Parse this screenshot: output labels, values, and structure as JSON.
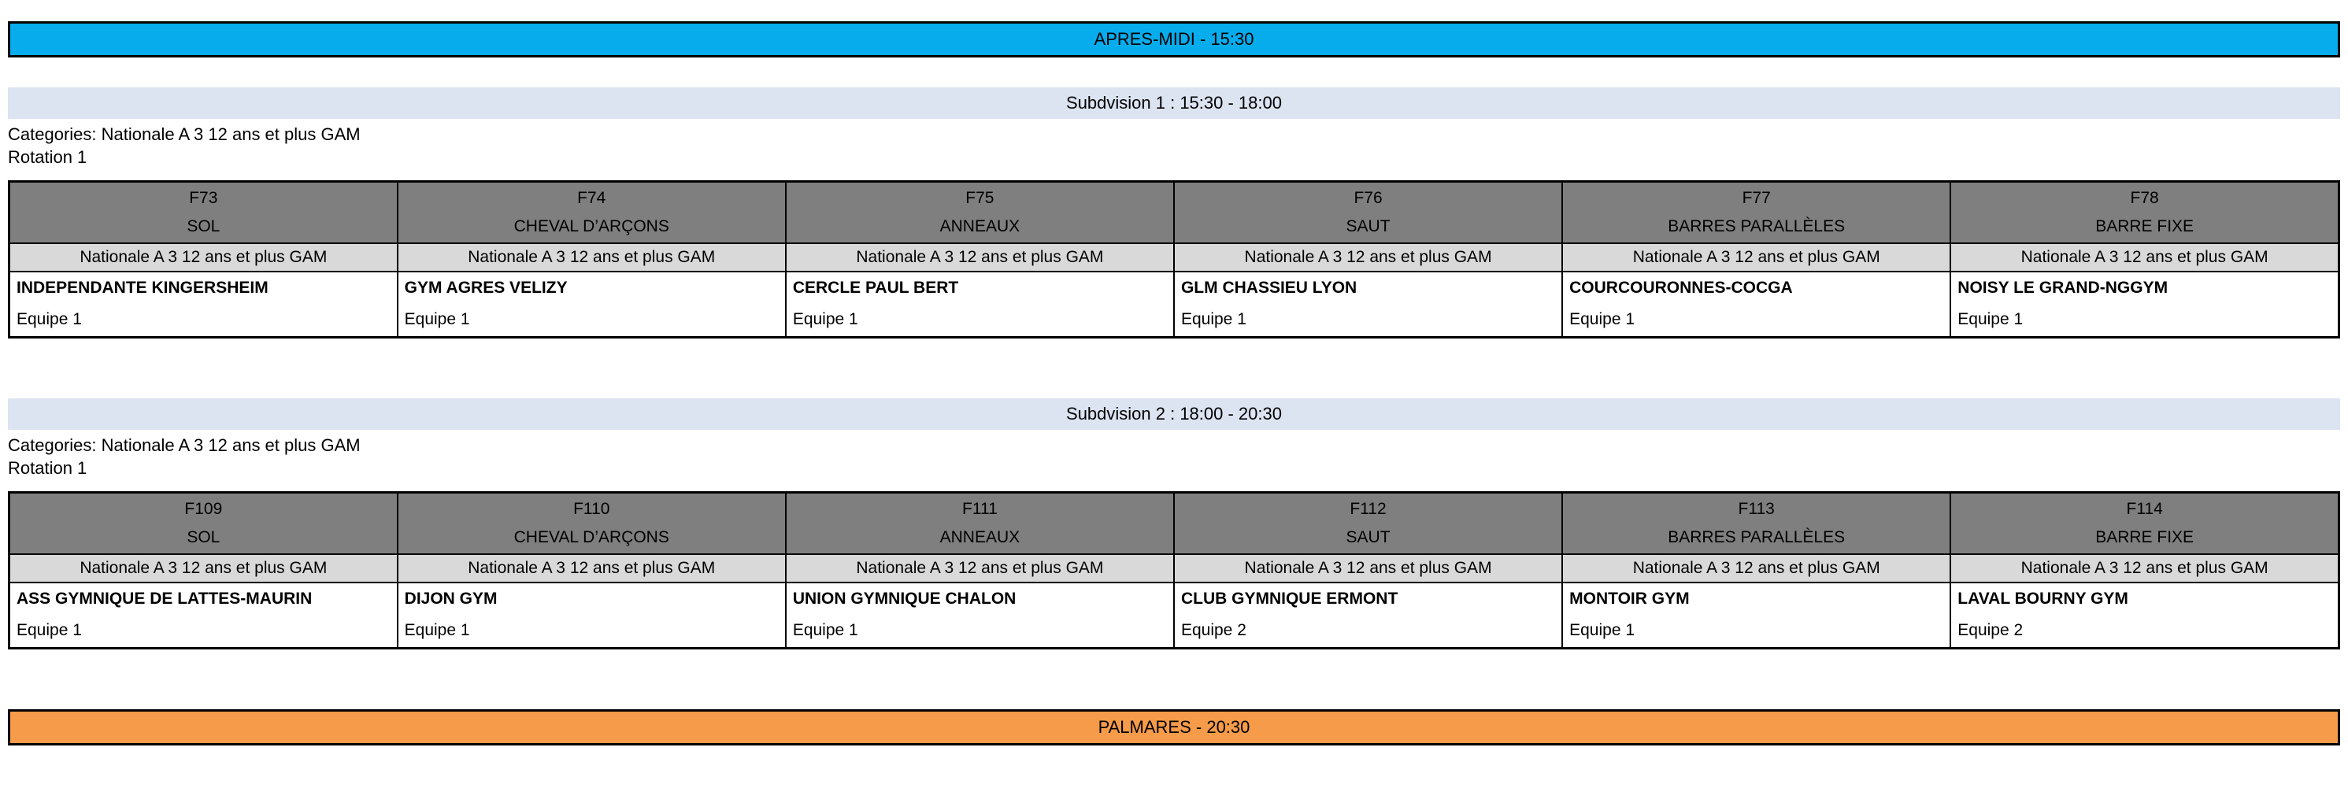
{
  "banners": {
    "afternoon": "APRES-MIDI - 15:30",
    "palmares": "PALMARES - 20:30"
  },
  "colors": {
    "afternoon_banner_bg": "#07ACEC",
    "palmares_banner_bg": "#F59B49",
    "subdivision_band_bg": "#DCE3F1",
    "apparatus_header_bg": "#7F7F7F",
    "category_row_bg": "#D9D9D9",
    "border": "#000000"
  },
  "subdivisions": [
    {
      "title": "Subdvision 1 : 15:30 - 18:00",
      "categories_label": "Categories: Nationale A 3 12 ans et plus GAM",
      "rotation_label": "Rotation 1",
      "columns": [
        {
          "code": "F73",
          "apparatus": "SOL",
          "category": "Nationale A 3 12 ans et plus GAM",
          "club": "INDEPENDANTE KINGERSHEIM",
          "team": "Equipe 1"
        },
        {
          "code": "F74",
          "apparatus": "CHEVAL D’ARÇONS",
          "category": "Nationale A 3 12 ans et plus GAM",
          "club": "GYM AGRES VELIZY",
          "team": "Equipe 1"
        },
        {
          "code": "F75",
          "apparatus": "ANNEAUX",
          "category": "Nationale A 3 12 ans et plus GAM",
          "club": "CERCLE PAUL BERT",
          "team": "Equipe 1"
        },
        {
          "code": "F76",
          "apparatus": "SAUT",
          "category": "Nationale A 3 12 ans et plus GAM",
          "club": "GLM CHASSIEU LYON",
          "team": "Equipe 1"
        },
        {
          "code": "F77",
          "apparatus": "BARRES PARALLÈLES",
          "category": "Nationale A 3 12 ans et plus GAM",
          "club": "COURCOURONNES-COCGA",
          "team": "Equipe 1"
        },
        {
          "code": "F78",
          "apparatus": "BARRE FIXE",
          "category": "Nationale A 3 12 ans et plus GAM",
          "club": "NOISY LE GRAND-NGGYM",
          "team": "Equipe 1"
        }
      ]
    },
    {
      "title": "Subdvision 2 : 18:00 - 20:30",
      "categories_label": "Categories: Nationale A 3 12 ans et plus GAM",
      "rotation_label": "Rotation 1",
      "columns": [
        {
          "code": "F109",
          "apparatus": "SOL",
          "category": "Nationale A 3 12 ans et plus GAM",
          "club": "ASS GYMNIQUE DE LATTES-MAURIN",
          "team": "Equipe 1"
        },
        {
          "code": "F110",
          "apparatus": "CHEVAL D’ARÇONS",
          "category": "Nationale A 3 12 ans et plus GAM",
          "club": "DIJON GYM",
          "team": "Equipe 1"
        },
        {
          "code": "F111",
          "apparatus": "ANNEAUX",
          "category": "Nationale A 3 12 ans et plus GAM",
          "club": "UNION GYMNIQUE CHALON",
          "team": "Equipe 1"
        },
        {
          "code": "F112",
          "apparatus": "SAUT",
          "category": "Nationale A 3 12 ans et plus GAM",
          "club": "CLUB GYMNIQUE ERMONT",
          "team": "Equipe 2"
        },
        {
          "code": "F113",
          "apparatus": "BARRES PARALLÈLES",
          "category": "Nationale A 3 12 ans et plus GAM",
          "club": "MONTOIR GYM",
          "team": "Equipe 1"
        },
        {
          "code": "F114",
          "apparatus": "BARRE FIXE",
          "category": "Nationale A 3 12 ans et plus GAM",
          "club": "LAVAL BOURNY GYM",
          "team": "Equipe 2"
        }
      ]
    }
  ]
}
